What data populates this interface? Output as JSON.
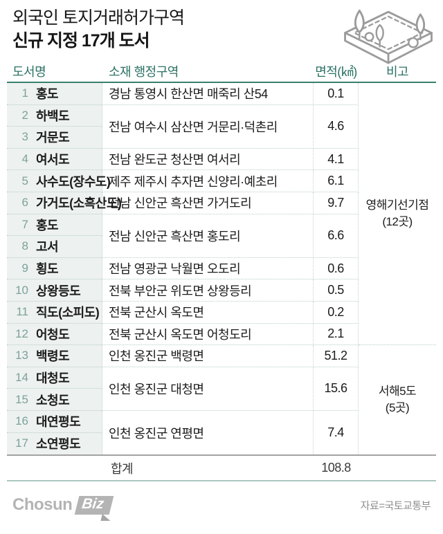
{
  "title": {
    "line1": "외국인 토지거래허가구역",
    "line2": "신규 지정 17개 도서"
  },
  "table": {
    "headers": {
      "name": "도서명",
      "district": "소재 행정구역",
      "area": "면적(㎢)",
      "note": "비고"
    },
    "rows": [
      {
        "no": "1",
        "name": "홍도"
      },
      {
        "no": "2",
        "name": "하백도"
      },
      {
        "no": "3",
        "name": "거문도"
      },
      {
        "no": "4",
        "name": "여서도"
      },
      {
        "no": "5",
        "name": "사수도(장수도)"
      },
      {
        "no": "6",
        "name": "가거도(소흑산도)"
      },
      {
        "no": "7",
        "name": "홍도"
      },
      {
        "no": "8",
        "name": "고서"
      },
      {
        "no": "9",
        "name": "횡도"
      },
      {
        "no": "10",
        "name": "상왕등도"
      },
      {
        "no": "11",
        "name": "직도(소피도)"
      },
      {
        "no": "12",
        "name": "어청도"
      },
      {
        "no": "13",
        "name": "백령도"
      },
      {
        "no": "14",
        "name": "대청도"
      },
      {
        "no": "15",
        "name": "소청도"
      },
      {
        "no": "16",
        "name": "대연평도"
      },
      {
        "no": "17",
        "name": "소연평도"
      }
    ],
    "groups": [
      {
        "row_start": 1,
        "row_end": 1,
        "district": "경남 통영시 한산면 매죽리 산54",
        "area": "0.1"
      },
      {
        "row_start": 2,
        "row_end": 3,
        "district": "전남 여수시 삼산면 거문리·덕촌리",
        "area": "4.6"
      },
      {
        "row_start": 4,
        "row_end": 4,
        "district": "전남 완도군 청산면 여서리",
        "area": "4.1"
      },
      {
        "row_start": 5,
        "row_end": 5,
        "district": "제주 제주시 추자면 신양리·예초리",
        "area": "6.1"
      },
      {
        "row_start": 6,
        "row_end": 6,
        "district": "전남 신안군 흑산면 가거도리",
        "area": "9.7"
      },
      {
        "row_start": 7,
        "row_end": 8,
        "district": "전남 신안군 흑산면 홍도리",
        "area": "6.6"
      },
      {
        "row_start": 9,
        "row_end": 9,
        "district": "전남 영광군 낙월면 오도리",
        "area": "0.6"
      },
      {
        "row_start": 10,
        "row_end": 10,
        "district": "전북 부안군 위도면 상왕등리",
        "area": "0.5"
      },
      {
        "row_start": 11,
        "row_end": 11,
        "district": "전북 군산시 옥도면",
        "area": "0.2"
      },
      {
        "row_start": 12,
        "row_end": 12,
        "district": "전북 군산시 옥도면 어청도리",
        "area": "2.1"
      },
      {
        "row_start": 13,
        "row_end": 13,
        "district": "인천 옹진군 백령면",
        "area": "51.2"
      },
      {
        "row_start": 14,
        "row_end": 15,
        "district": "인천 옹진군 대청면",
        "area": "15.6"
      },
      {
        "row_start": 16,
        "row_end": 17,
        "district": "인천 옹진군 연평면",
        "area": "7.4"
      }
    ],
    "notes": [
      {
        "row_start": 1,
        "row_end": 12,
        "label": "영해기선기점",
        "count": "(12곳)"
      },
      {
        "row_start": 13,
        "row_end": 17,
        "label": "서해5도",
        "count": "(5곳)"
      }
    ],
    "total": {
      "label": "합계",
      "value": "108.8"
    }
  },
  "footer": {
    "logo_chosun": "Chosun",
    "logo_biz": "Biz",
    "source": "자료=국토교통부"
  },
  "icons": {
    "island": "island-illustration-icon"
  },
  "colors": {
    "header_teal": "#2c7265",
    "header_line_teal": "#37806f",
    "row_number": "#7da299",
    "name_column_bg": "#edf1f0",
    "dotted_border": "#b7cec7",
    "total_top_line": "#a2a2a2",
    "bottom_line_teal": "#abc7c0",
    "body_text": "#1b1b1b",
    "footer_gray": "#8f8f8f",
    "logo_gray": "#b4b4b4"
  },
  "chart_data": {
    "type": "table",
    "title": "외국인 토지거래허가구역 신규 지정 17개 도서",
    "columns": [
      "도서명",
      "소재 행정구역",
      "면적(㎢)",
      "비고"
    ],
    "rows": [
      [
        "1 홍도",
        "경남 통영시 한산면 매죽리 산54",
        0.1,
        "영해기선기점(12곳)"
      ],
      [
        "2 하백도",
        "전남 여수시 삼산면 거문리·덕촌리",
        4.6,
        "영해기선기점(12곳)"
      ],
      [
        "3 거문도",
        "전남 여수시 삼산면 거문리·덕촌리",
        4.6,
        "영해기선기점(12곳)"
      ],
      [
        "4 여서도",
        "전남 완도군 청산면 여서리",
        4.1,
        "영해기선기점(12곳)"
      ],
      [
        "5 사수도(장수도)",
        "제주 제주시 추자면 신양리·예초리",
        6.1,
        "영해기선기점(12곳)"
      ],
      [
        "6 가거도(소흑산도)",
        "전남 신안군 흑산면 가거도리",
        9.7,
        "영해기선기점(12곳)"
      ],
      [
        "7 홍도",
        "전남 신안군 흑산면 홍도리",
        6.6,
        "영해기선기점(12곳)"
      ],
      [
        "8 고서",
        "전남 신안군 흑산면 홍도리",
        6.6,
        "영해기선기점(12곳)"
      ],
      [
        "9 횡도",
        "전남 영광군 낙월면 오도리",
        0.6,
        "영해기선기점(12곳)"
      ],
      [
        "10 상왕등도",
        "전북 부안군 위도면 상왕등리",
        0.5,
        "영해기선기점(12곳)"
      ],
      [
        "11 직도(소피도)",
        "전북 군산시 옥도면",
        0.2,
        "영해기선기점(12곳)"
      ],
      [
        "12 어청도",
        "전북 군산시 옥도면 어청도리",
        2.1,
        "영해기선기점(12곳)"
      ],
      [
        "13 백령도",
        "인천 옹진군 백령면",
        51.2,
        "서해5도(5곳)"
      ],
      [
        "14 대청도",
        "인천 옹진군 대청면",
        15.6,
        "서해5도(5곳)"
      ],
      [
        "15 소청도",
        "인천 옹진군 대청면",
        15.6,
        "서해5도(5곳)"
      ],
      [
        "16 대연평도",
        "인천 옹진군 연평면",
        7.4,
        "서해5도(5곳)"
      ],
      [
        "17 소연평도",
        "인천 옹진군 연평면",
        7.4,
        "서해5도(5곳)"
      ]
    ],
    "merged_area_groups": [
      [
        1,
        1,
        0.1
      ],
      [
        2,
        3,
        4.6
      ],
      [
        4,
        4,
        4.1
      ],
      [
        5,
        5,
        6.1
      ],
      [
        6,
        6,
        9.7
      ],
      [
        7,
        8,
        6.6
      ],
      [
        9,
        9,
        0.6
      ],
      [
        10,
        10,
        0.5
      ],
      [
        11,
        11,
        0.2
      ],
      [
        12,
        12,
        2.1
      ],
      [
        13,
        13,
        51.2
      ],
      [
        14,
        15,
        15.6
      ],
      [
        16,
        17,
        7.4
      ]
    ],
    "total": 108.8,
    "source": "자료=국토교통부"
  }
}
